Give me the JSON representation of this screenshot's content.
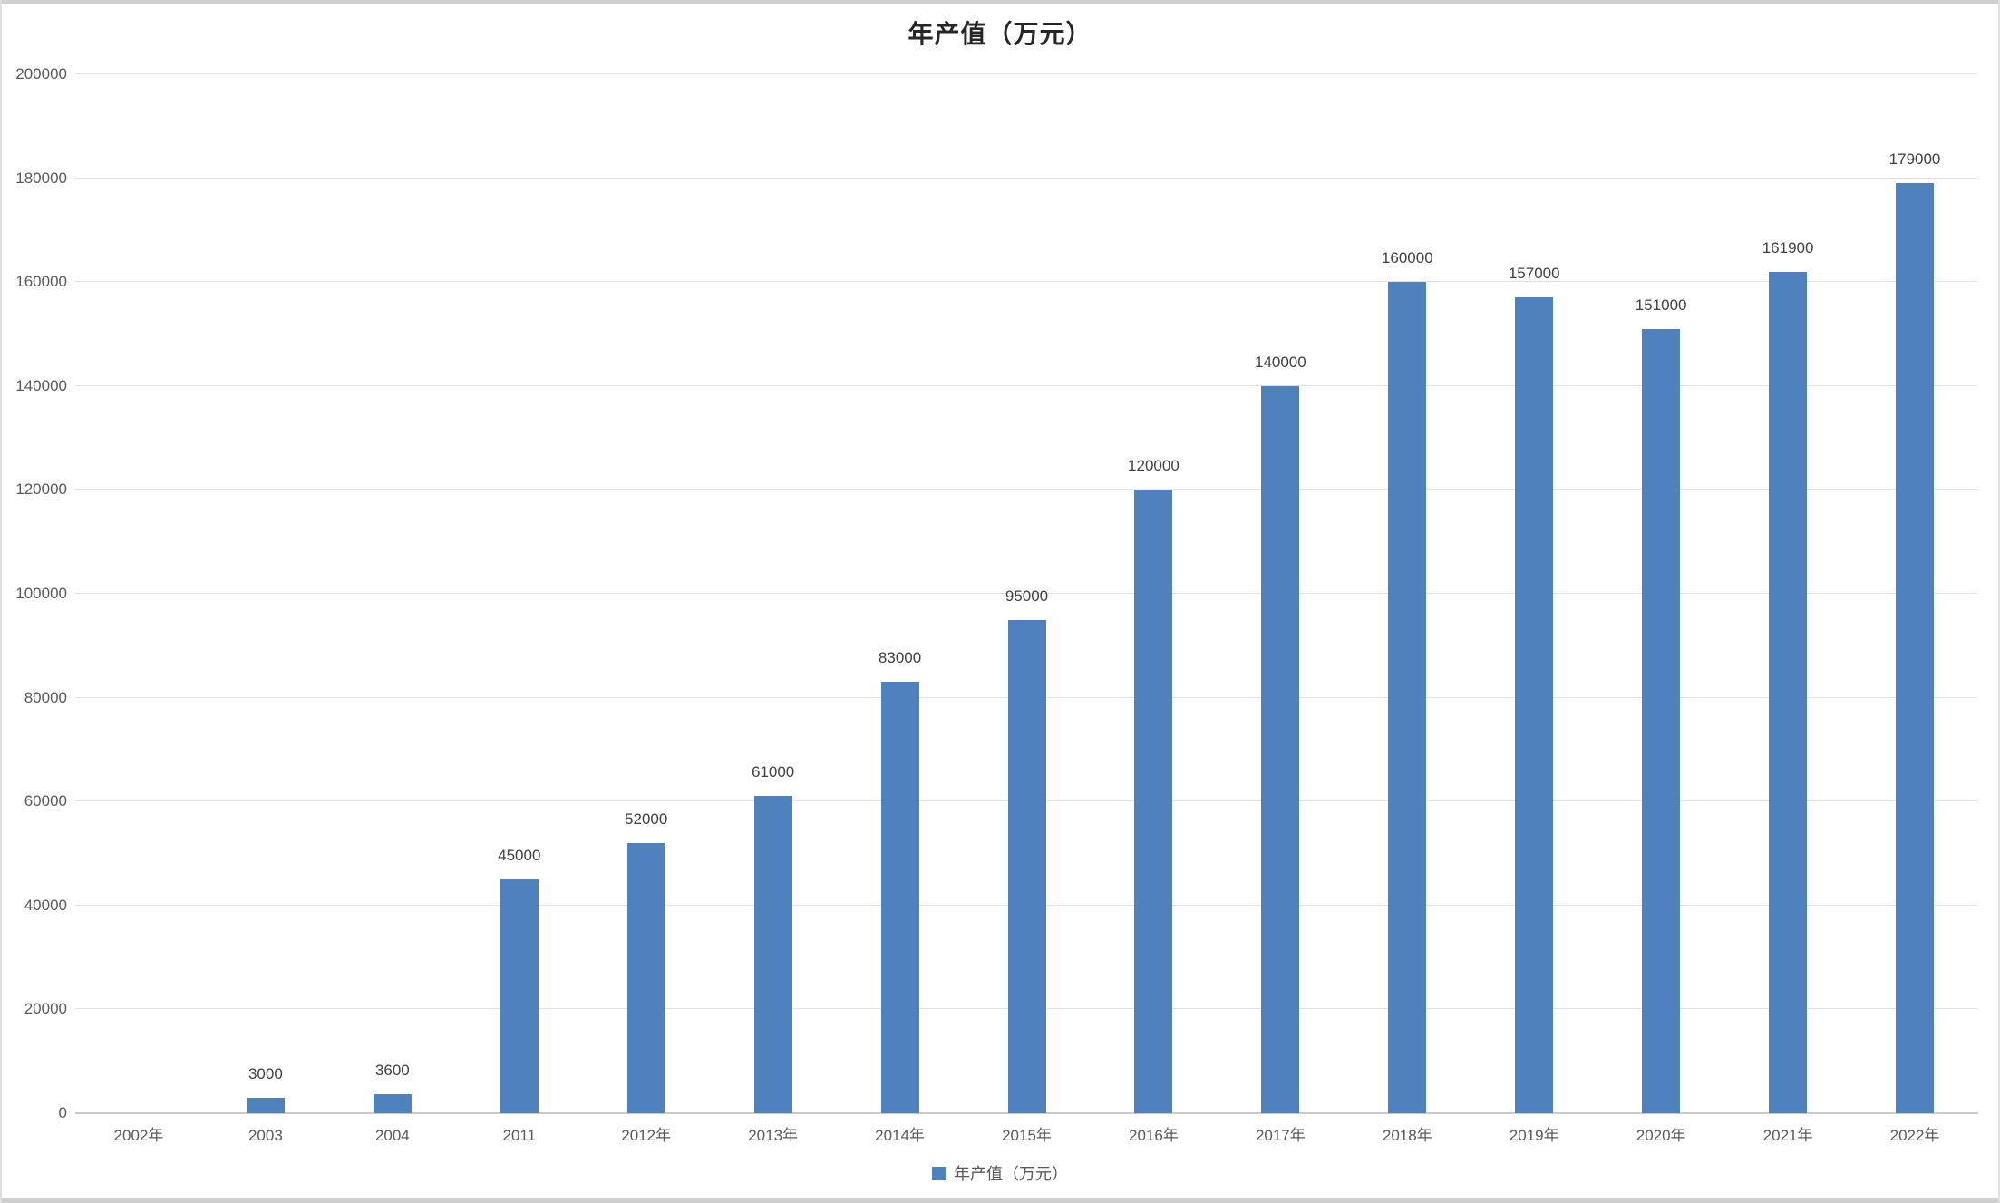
{
  "chart_data": {
    "type": "bar",
    "title": "年产值（万元）",
    "categories": [
      "2002年",
      "2003",
      "2004",
      "2011",
      "2012年",
      "2013年",
      "2014年",
      "2015年",
      "2016年",
      "2017年",
      "2018年",
      "2019年",
      "2020年",
      "2021年",
      "2022年"
    ],
    "values": [
      0,
      3000,
      3600,
      45000,
      52000,
      61000,
      83000,
      95000,
      120000,
      140000,
      160000,
      157000,
      151000,
      161900,
      179000
    ],
    "data_labels": [
      "",
      "3000",
      "3600",
      "45000",
      "52000",
      "61000",
      "83000",
      "95000",
      "120000",
      "140000",
      "160000",
      "157000",
      "151000",
      "161900",
      "179000"
    ],
    "xlabel": "",
    "ylabel": "",
    "ylim": [
      0,
      200000
    ],
    "y_tick_interval": 20000,
    "y_tick_labels": [
      "0",
      "20000",
      "40000",
      "60000",
      "80000",
      "100000",
      "120000",
      "140000",
      "160000",
      "180000",
      "200000"
    ],
    "grid": true,
    "legend": {
      "label": "年产值（万元）",
      "position": "bottom",
      "marker_color": "#4E81BD"
    },
    "bar_color": "#4E81BD",
    "gridline_color": "#E2E2E2",
    "axis_line_color": "#C9C9C9",
    "tick_label_color": "#595959",
    "data_label_color": "#404040",
    "title_color": "#262626"
  }
}
